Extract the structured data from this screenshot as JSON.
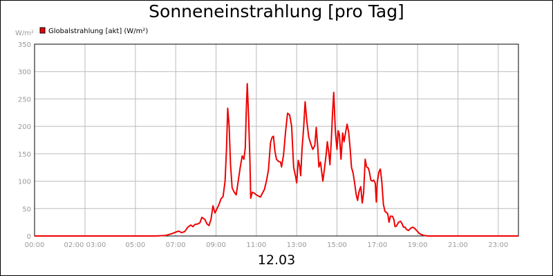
{
  "chart_data": {
    "type": "line",
    "title": "Sonneneinstrahlung [pro Tag]",
    "ylabel": "W/m²",
    "xlabel": "12.03",
    "ylim": [
      0,
      350
    ],
    "xlim": [
      0,
      24
    ],
    "y_ticks": [
      0,
      50,
      100,
      150,
      200,
      250,
      300,
      350
    ],
    "x_ticks": [
      {
        "label": "00:00",
        "x": 0
      },
      {
        "label": "02:00 03:00",
        "x": 2.5
      },
      {
        "label": "05:00",
        "x": 5
      },
      {
        "label": "07:00",
        "x": 7
      },
      {
        "label": "09:00",
        "x": 9
      },
      {
        "label": "11:00",
        "x": 11
      },
      {
        "label": "13:00",
        "x": 13
      },
      {
        "label": "15:00",
        "x": 15
      },
      {
        "label": "17:00",
        "x": 17
      },
      {
        "label": "19:00",
        "x": 19
      },
      {
        "label": "21:00",
        "x": 21
      },
      {
        "label": "23:00",
        "x": 23
      }
    ],
    "grid": true,
    "legend_position": "top-left",
    "series": [
      {
        "name": "Globalstrahlung [akt] (W/m²)",
        "color": "#ee0000",
        "points": [
          [
            0,
            0
          ],
          [
            6.0,
            0
          ],
          [
            6.5,
            1
          ],
          [
            6.8,
            4
          ],
          [
            7.0,
            7
          ],
          [
            7.15,
            9
          ],
          [
            7.3,
            6
          ],
          [
            7.45,
            8
          ],
          [
            7.6,
            16
          ],
          [
            7.75,
            20
          ],
          [
            7.85,
            17
          ],
          [
            7.95,
            21
          ],
          [
            8.1,
            22
          ],
          [
            8.2,
            24
          ],
          [
            8.3,
            34
          ],
          [
            8.45,
            30
          ],
          [
            8.55,
            22
          ],
          [
            8.65,
            19
          ],
          [
            8.75,
            30
          ],
          [
            8.85,
            55
          ],
          [
            8.95,
            42
          ],
          [
            9.05,
            50
          ],
          [
            9.15,
            58
          ],
          [
            9.25,
            68
          ],
          [
            9.35,
            72
          ],
          [
            9.45,
            100
          ],
          [
            9.52,
            160
          ],
          [
            9.58,
            233
          ],
          [
            9.65,
            200
          ],
          [
            9.72,
            130
          ],
          [
            9.8,
            88
          ],
          [
            9.9,
            80
          ],
          [
            10.0,
            75
          ],
          [
            10.1,
            100
          ],
          [
            10.2,
            125
          ],
          [
            10.3,
            146
          ],
          [
            10.38,
            140
          ],
          [
            10.45,
            160
          ],
          [
            10.5,
            230
          ],
          [
            10.55,
            278
          ],
          [
            10.62,
            215
          ],
          [
            10.68,
            140
          ],
          [
            10.72,
            69
          ],
          [
            10.8,
            80
          ],
          [
            10.9,
            78
          ],
          [
            11.0,
            75
          ],
          [
            11.2,
            71
          ],
          [
            11.4,
            85
          ],
          [
            11.5,
            100
          ],
          [
            11.6,
            120
          ],
          [
            11.7,
            170
          ],
          [
            11.78,
            180
          ],
          [
            11.85,
            182
          ],
          [
            11.92,
            155
          ],
          [
            12.0,
            140
          ],
          [
            12.1,
            136
          ],
          [
            12.2,
            135
          ],
          [
            12.25,
            126
          ],
          [
            12.35,
            148
          ],
          [
            12.45,
            190
          ],
          [
            12.55,
            224
          ],
          [
            12.65,
            221
          ],
          [
            12.75,
            200
          ],
          [
            12.85,
            125
          ],
          [
            12.95,
            108
          ],
          [
            13.0,
            97
          ],
          [
            13.08,
            138
          ],
          [
            13.15,
            128
          ],
          [
            13.2,
            110
          ],
          [
            13.27,
            160
          ],
          [
            13.35,
            200
          ],
          [
            13.42,
            245
          ],
          [
            13.5,
            210
          ],
          [
            13.6,
            180
          ],
          [
            13.7,
            168
          ],
          [
            13.8,
            158
          ],
          [
            13.9,
            165
          ],
          [
            13.97,
            198
          ],
          [
            14.05,
            160
          ],
          [
            14.1,
            126
          ],
          [
            14.18,
            135
          ],
          [
            14.25,
            115
          ],
          [
            14.3,
            100
          ],
          [
            14.38,
            123
          ],
          [
            14.45,
            145
          ],
          [
            14.52,
            172
          ],
          [
            14.6,
            150
          ],
          [
            14.65,
            130
          ],
          [
            14.72,
            175
          ],
          [
            14.78,
            225
          ],
          [
            14.84,
            262
          ],
          [
            14.92,
            190
          ],
          [
            15.0,
            158
          ],
          [
            15.06,
            192
          ],
          [
            15.12,
            185
          ],
          [
            15.2,
            140
          ],
          [
            15.28,
            188
          ],
          [
            15.35,
            172
          ],
          [
            15.42,
            188
          ],
          [
            15.5,
            204
          ],
          [
            15.58,
            190
          ],
          [
            15.65,
            160
          ],
          [
            15.72,
            125
          ],
          [
            15.8,
            115
          ],
          [
            15.88,
            95
          ],
          [
            15.95,
            76
          ],
          [
            16.02,
            65
          ],
          [
            16.1,
            82
          ],
          [
            16.18,
            90
          ],
          [
            16.25,
            60
          ],
          [
            16.32,
            78
          ],
          [
            16.4,
            140
          ],
          [
            16.47,
            126
          ],
          [
            16.55,
            124
          ],
          [
            16.6,
            118
          ],
          [
            16.68,
            102
          ],
          [
            16.75,
            100
          ],
          [
            16.82,
            102
          ],
          [
            16.9,
            96
          ],
          [
            16.95,
            62
          ],
          [
            17.0,
            98
          ],
          [
            17.08,
            117
          ],
          [
            17.15,
            122
          ],
          [
            17.22,
            100
          ],
          [
            17.3,
            58
          ],
          [
            17.38,
            45
          ],
          [
            17.45,
            43
          ],
          [
            17.52,
            40
          ],
          [
            17.58,
            25
          ],
          [
            17.65,
            36
          ],
          [
            17.75,
            36
          ],
          [
            17.82,
            30
          ],
          [
            17.88,
            17
          ],
          [
            17.95,
            18
          ],
          [
            18.05,
            25
          ],
          [
            18.15,
            27
          ],
          [
            18.22,
            23
          ],
          [
            18.3,
            16
          ],
          [
            18.38,
            16
          ],
          [
            18.45,
            12
          ],
          [
            18.55,
            10
          ],
          [
            18.65,
            14
          ],
          [
            18.75,
            16
          ],
          [
            18.85,
            14
          ],
          [
            18.95,
            10
          ],
          [
            19.1,
            4
          ],
          [
            19.3,
            1
          ],
          [
            19.5,
            0
          ],
          [
            24.0,
            0
          ]
        ]
      }
    ]
  }
}
